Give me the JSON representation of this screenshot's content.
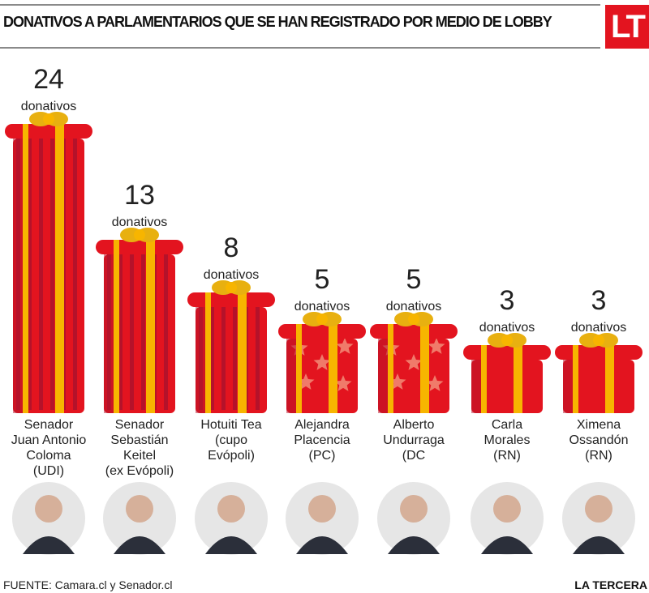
{
  "header": {
    "title": "DONATIVOS A PARLAMENTARIOS QUE SE HAN REGISTRADO POR MEDIO DE LOBBY",
    "logo": "LT"
  },
  "footer": {
    "source": "FUENTE: Camara.cl y Senador.cl",
    "brand": "LA TERCERA"
  },
  "colors": {
    "red": "#e3141f",
    "dark_red": "#b5122a",
    "ribbon": "#f7b500",
    "bow": "#e8b010",
    "star": "#f07a6a",
    "logo": "#e3141f"
  },
  "chart_data": {
    "type": "bar",
    "title": "DONATIVOS A PARLAMENTARIOS QUE SE HAN REGISTRADO POR MEDIO DE LOBBY",
    "unit": "donativos",
    "categories": [
      [
        "Senador",
        "Juan Antonio",
        "Coloma",
        "(UDI)"
      ],
      [
        "Senador",
        "Sebastián",
        "Keitel",
        "(ex Evópoli)"
      ],
      [
        "Hotuiti Tea",
        "(cupo",
        "Evópoli)"
      ],
      [
        "Alejandra",
        "Placencia",
        "(PC)"
      ],
      [
        "Alberto",
        "Undurraga",
        "(DC"
      ],
      [
        "Carla",
        "Morales",
        "(RN)"
      ],
      [
        "Ximena",
        "Ossandón",
        "(RN)"
      ]
    ],
    "values": [
      24,
      13,
      8,
      5,
      5,
      3,
      3
    ],
    "mark_style": [
      "striped",
      "striped",
      "striped",
      "stars",
      "stars",
      "plain",
      "plain"
    ]
  }
}
